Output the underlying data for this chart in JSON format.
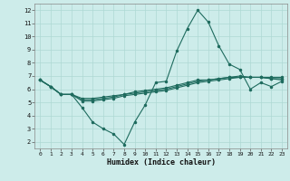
{
  "xlabel": "Humidex (Indice chaleur)",
  "background_color": "#cdecea",
  "grid_color": "#aed8d4",
  "line_color": "#1e6b5e",
  "xlim": [
    -0.5,
    23.5
  ],
  "ylim": [
    1.5,
    12.5
  ],
  "xticks": [
    0,
    1,
    2,
    3,
    4,
    5,
    6,
    7,
    8,
    9,
    10,
    11,
    12,
    13,
    14,
    15,
    16,
    17,
    18,
    19,
    20,
    21,
    22,
    23
  ],
  "yticks": [
    2,
    3,
    4,
    5,
    6,
    7,
    8,
    9,
    10,
    11,
    12
  ],
  "series": [
    [
      6.7,
      6.2,
      5.6,
      5.6,
      4.6,
      3.5,
      3.0,
      2.6,
      1.8,
      3.5,
      4.8,
      6.5,
      6.6,
      8.9,
      10.6,
      12.0,
      11.1,
      9.3,
      7.9,
      7.5,
      6.0,
      6.5,
      6.2,
      6.6
    ],
    [
      6.7,
      6.2,
      5.6,
      5.6,
      5.1,
      5.1,
      5.2,
      5.3,
      5.5,
      5.6,
      5.7,
      5.8,
      5.9,
      6.1,
      6.3,
      6.5,
      6.6,
      6.7,
      6.8,
      6.9,
      6.9,
      6.9,
      6.9,
      6.9
    ],
    [
      6.7,
      6.2,
      5.6,
      5.6,
      5.3,
      5.3,
      5.4,
      5.5,
      5.6,
      5.8,
      5.9,
      6.0,
      6.1,
      6.3,
      6.5,
      6.7,
      6.7,
      6.8,
      6.9,
      7.0,
      6.9,
      6.9,
      6.8,
      6.8
    ],
    [
      6.7,
      6.2,
      5.6,
      5.6,
      5.2,
      5.2,
      5.3,
      5.4,
      5.6,
      5.7,
      5.8,
      5.9,
      6.0,
      6.2,
      6.4,
      6.6,
      6.7,
      6.8,
      6.9,
      6.9,
      6.9,
      6.9,
      6.8,
      6.7
    ]
  ]
}
